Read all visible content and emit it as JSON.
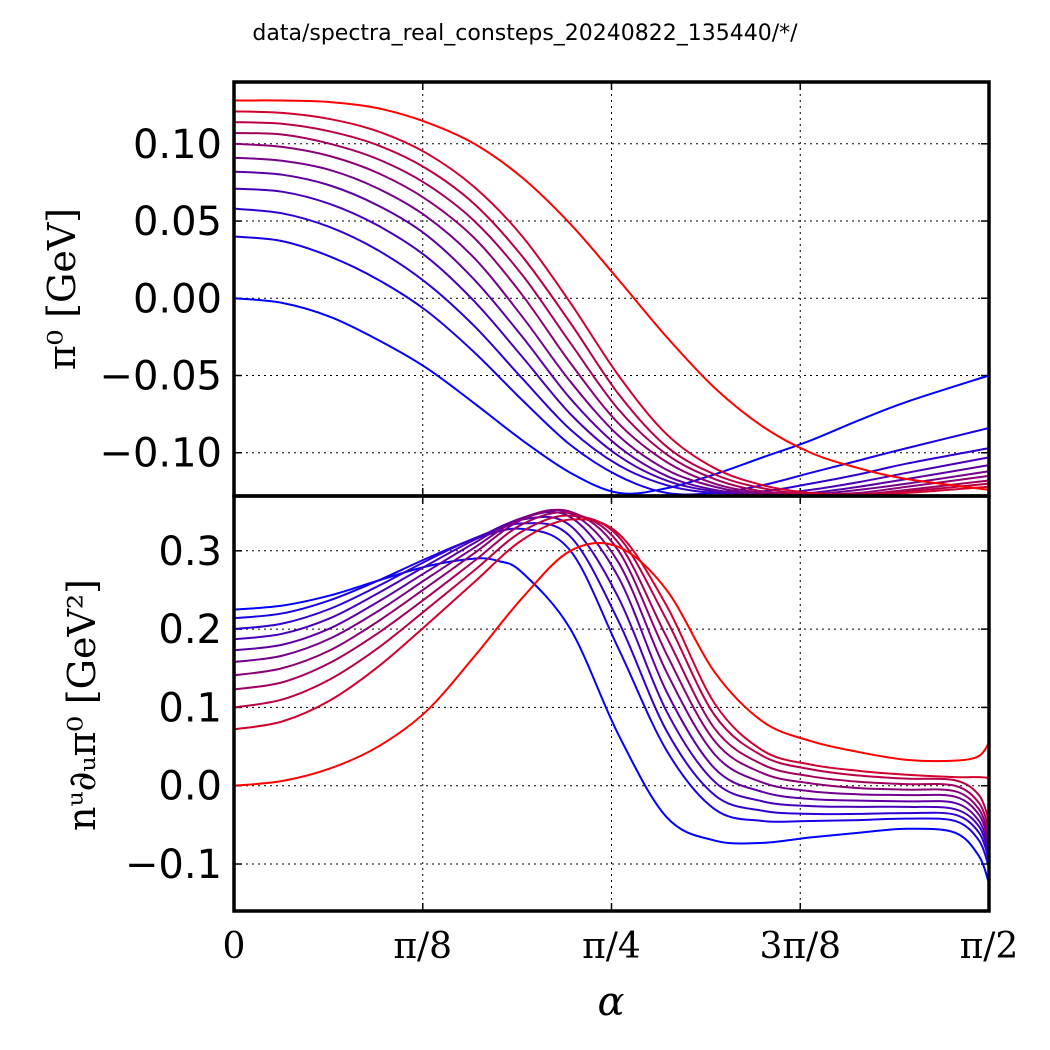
{
  "figure": {
    "title": "data/spectra_real_consteps_20240822_135440/*/"
  },
  "chart_data": [
    {
      "type": "line",
      "panel": "top",
      "ylabel": "π⁰ [GeV]",
      "xlabel": "",
      "xlim": [
        0,
        1.5708
      ],
      "ylim": [
        -0.128,
        0.14
      ],
      "yticks": [
        0.1,
        0.05,
        0.0,
        -0.05,
        -0.1
      ],
      "ytick_labels": [
        "0.10",
        "0.05",
        "0.00",
        "−0.05",
        "−0.10"
      ],
      "grid": true,
      "series_colors": [
        "#0000ff",
        "#1700e8",
        "#2e00d1",
        "#4600b9",
        "#5d00a2",
        "#74008b",
        "#8b0074",
        "#a2005d",
        "#b90046",
        "#d1002e",
        "#ff0000"
      ],
      "series": [
        {
          "x": [
            0,
            0.1,
            0.2,
            0.3,
            0.4,
            0.5,
            0.6,
            0.7,
            0.8,
            0.9,
            1.0,
            1.1,
            1.2,
            1.3,
            1.4,
            1.5708
          ],
          "values": [
            0.0,
            -0.003,
            -0.012,
            -0.027,
            -0.045,
            -0.068,
            -0.092,
            -0.113,
            -0.126,
            -0.123,
            -0.114,
            -0.103,
            -0.092,
            -0.079,
            -0.067,
            -0.05
          ]
        },
        {
          "x": [
            0,
            0.1,
            0.2,
            0.3,
            0.4,
            0.5,
            0.6,
            0.7,
            0.8,
            0.9,
            1.0,
            1.1,
            1.2,
            1.3,
            1.4,
            1.5708
          ],
          "values": [
            0.04,
            0.037,
            0.027,
            0.012,
            -0.008,
            -0.035,
            -0.066,
            -0.095,
            -0.115,
            -0.126,
            -0.126,
            -0.121,
            -0.113,
            -0.105,
            -0.097,
            -0.084
          ]
        },
        {
          "x": [
            0,
            0.1,
            0.2,
            0.3,
            0.4,
            0.5,
            0.6,
            0.7,
            0.8,
            0.9,
            1.0,
            1.1,
            1.2,
            1.3,
            1.4,
            1.5708
          ],
          "values": [
            0.058,
            0.055,
            0.046,
            0.031,
            0.01,
            -0.018,
            -0.052,
            -0.085,
            -0.108,
            -0.121,
            -0.126,
            -0.125,
            -0.12,
            -0.114,
            -0.107,
            -0.097
          ]
        },
        {
          "x": [
            0,
            0.1,
            0.2,
            0.3,
            0.4,
            0.5,
            0.6,
            0.7,
            0.8,
            0.9,
            1.0,
            1.1,
            1.2,
            1.3,
            1.4,
            1.5708
          ],
          "values": [
            0.071,
            0.069,
            0.061,
            0.047,
            0.027,
            -0.002,
            -0.038,
            -0.075,
            -0.102,
            -0.118,
            -0.125,
            -0.127,
            -0.124,
            -0.119,
            -0.113,
            -0.103
          ]
        },
        {
          "x": [
            0,
            0.1,
            0.2,
            0.3,
            0.4,
            0.5,
            0.6,
            0.7,
            0.8,
            0.9,
            1.0,
            1.1,
            1.2,
            1.3,
            1.4,
            1.5708
          ],
          "values": [
            0.082,
            0.08,
            0.073,
            0.06,
            0.041,
            0.012,
            -0.025,
            -0.065,
            -0.096,
            -0.115,
            -0.124,
            -0.127,
            -0.126,
            -0.122,
            -0.117,
            -0.108
          ]
        },
        {
          "x": [
            0,
            0.1,
            0.2,
            0.3,
            0.4,
            0.5,
            0.6,
            0.7,
            0.8,
            0.9,
            1.0,
            1.1,
            1.2,
            1.3,
            1.4,
            1.5708
          ],
          "values": [
            0.091,
            0.089,
            0.083,
            0.071,
            0.053,
            0.026,
            -0.012,
            -0.054,
            -0.089,
            -0.111,
            -0.122,
            -0.127,
            -0.127,
            -0.124,
            -0.12,
            -0.112
          ]
        },
        {
          "x": [
            0,
            0.1,
            0.2,
            0.3,
            0.4,
            0.5,
            0.6,
            0.7,
            0.8,
            0.9,
            1.0,
            1.1,
            1.2,
            1.3,
            1.4,
            1.5708
          ],
          "values": [
            0.1,
            0.098,
            0.092,
            0.081,
            0.064,
            0.039,
            0.002,
            -0.042,
            -0.081,
            -0.106,
            -0.12,
            -0.126,
            -0.127,
            -0.126,
            -0.122,
            -0.115
          ]
        },
        {
          "x": [
            0,
            0.1,
            0.2,
            0.3,
            0.4,
            0.5,
            0.6,
            0.7,
            0.8,
            0.9,
            1.0,
            1.1,
            1.2,
            1.3,
            1.4,
            1.5708
          ],
          "values": [
            0.107,
            0.106,
            0.1,
            0.09,
            0.074,
            0.05,
            0.015,
            -0.029,
            -0.072,
            -0.101,
            -0.117,
            -0.125,
            -0.127,
            -0.127,
            -0.124,
            -0.118
          ]
        },
        {
          "x": [
            0,
            0.1,
            0.2,
            0.3,
            0.4,
            0.5,
            0.6,
            0.7,
            0.8,
            0.9,
            1.0,
            1.1,
            1.2,
            1.3,
            1.4,
            1.5708
          ],
          "values": [
            0.114,
            0.113,
            0.108,
            0.099,
            0.084,
            0.061,
            0.027,
            -0.016,
            -0.062,
            -0.096,
            -0.114,
            -0.123,
            -0.127,
            -0.127,
            -0.125,
            -0.12
          ]
        },
        {
          "x": [
            0,
            0.1,
            0.2,
            0.3,
            0.4,
            0.5,
            0.6,
            0.7,
            0.8,
            0.9,
            1.0,
            1.1,
            1.2,
            1.3,
            1.4,
            1.5708
          ],
          "values": [
            0.121,
            0.12,
            0.116,
            0.108,
            0.094,
            0.072,
            0.04,
            -0.003,
            -0.05,
            -0.088,
            -0.11,
            -0.121,
            -0.126,
            -0.127,
            -0.126,
            -0.122
          ]
        },
        {
          "x": [
            0,
            0.1,
            0.2,
            0.3,
            0.4,
            0.5,
            0.6,
            0.7,
            0.8,
            0.9,
            1.0,
            1.1,
            1.2,
            1.3,
            1.4,
            1.5708
          ],
          "values": [
            0.128,
            0.128,
            0.127,
            0.123,
            0.114,
            0.1,
            0.078,
            0.048,
            0.012,
            -0.025,
            -0.058,
            -0.083,
            -0.1,
            -0.11,
            -0.117,
            -0.124
          ]
        }
      ]
    },
    {
      "type": "line",
      "panel": "bottom",
      "ylabel": "nᵘ∂ᵤπ⁰ [GeV²]",
      "xlabel": "α",
      "xlim": [
        0,
        1.5708
      ],
      "ylim": [
        -0.16,
        0.37
      ],
      "yticks": [
        0.3,
        0.2,
        0.1,
        0.0,
        -0.1
      ],
      "ytick_labels": [
        "0.3",
        "0.2",
        "0.1",
        "0.0",
        "−0.1"
      ],
      "xticks": [
        0,
        0.3927,
        0.7854,
        1.1781,
        1.5708
      ],
      "xtick_labels": [
        "0",
        "π/8",
        "π/4",
        "3π/8",
        "π/2"
      ],
      "grid": true,
      "series_colors": [
        "#0000ff",
        "#1700e8",
        "#2e00d1",
        "#4600b9",
        "#5d00a2",
        "#74008b",
        "#8b0074",
        "#a2005d",
        "#b90046",
        "#d1002e",
        "#ff0000"
      ],
      "series": [
        {
          "x": [
            0,
            0.1,
            0.2,
            0.3,
            0.4,
            0.5,
            0.55,
            0.6,
            0.7,
            0.8,
            0.9,
            1.0,
            1.1,
            1.2,
            1.3,
            1.4,
            1.5,
            1.55,
            1.5708
          ],
          "values": [
            0.225,
            0.23,
            0.243,
            0.262,
            0.28,
            0.29,
            0.287,
            0.272,
            0.2,
            0.065,
            -0.04,
            -0.07,
            -0.073,
            -0.066,
            -0.06,
            -0.055,
            -0.06,
            -0.09,
            -0.125
          ]
        },
        {
          "x": [
            0,
            0.1,
            0.2,
            0.3,
            0.4,
            0.5,
            0.6,
            0.7,
            0.8,
            0.9,
            1.0,
            1.1,
            1.2,
            1.3,
            1.4,
            1.5,
            1.55,
            1.5708
          ],
          "values": [
            0.214,
            0.22,
            0.237,
            0.262,
            0.29,
            0.315,
            0.328,
            0.3,
            0.175,
            0.045,
            -0.03,
            -0.045,
            -0.045,
            -0.044,
            -0.042,
            -0.045,
            -0.07,
            -0.105
          ]
        },
        {
          "x": [
            0,
            0.1,
            0.2,
            0.3,
            0.4,
            0.5,
            0.6,
            0.7,
            0.8,
            0.9,
            1.0,
            1.1,
            1.2,
            1.3,
            1.4,
            1.5,
            1.55,
            1.5708
          ],
          "values": [
            0.2,
            0.207,
            0.226,
            0.255,
            0.287,
            0.316,
            0.335,
            0.318,
            0.21,
            0.07,
            -0.012,
            -0.032,
            -0.036,
            -0.036,
            -0.035,
            -0.037,
            -0.06,
            -0.095
          ]
        },
        {
          "x": [
            0,
            0.1,
            0.2,
            0.3,
            0.4,
            0.5,
            0.6,
            0.7,
            0.8,
            0.9,
            1.0,
            1.1,
            1.2,
            1.3,
            1.4,
            1.5,
            1.55,
            1.5708
          ],
          "values": [
            0.187,
            0.194,
            0.214,
            0.246,
            0.281,
            0.314,
            0.34,
            0.332,
            0.24,
            0.095,
            0.005,
            -0.02,
            -0.026,
            -0.027,
            -0.027,
            -0.03,
            -0.052,
            -0.088
          ]
        },
        {
          "x": [
            0,
            0.1,
            0.2,
            0.3,
            0.4,
            0.5,
            0.6,
            0.7,
            0.8,
            0.9,
            1.0,
            1.1,
            1.2,
            1.3,
            1.4,
            1.5,
            1.55,
            1.5708
          ],
          "values": [
            0.173,
            0.18,
            0.201,
            0.235,
            0.273,
            0.31,
            0.342,
            0.343,
            0.266,
            0.12,
            0.022,
            -0.008,
            -0.017,
            -0.019,
            -0.02,
            -0.022,
            -0.045,
            -0.08
          ]
        },
        {
          "x": [
            0,
            0.1,
            0.2,
            0.3,
            0.4,
            0.5,
            0.6,
            0.7,
            0.8,
            0.9,
            1.0,
            1.1,
            1.2,
            1.3,
            1.4,
            1.5,
            1.55,
            1.5708
          ],
          "values": [
            0.158,
            0.166,
            0.188,
            0.223,
            0.264,
            0.304,
            0.342,
            0.348,
            0.285,
            0.145,
            0.04,
            0.004,
            -0.007,
            -0.011,
            -0.012,
            -0.014,
            -0.037,
            -0.072
          ]
        },
        {
          "x": [
            0,
            0.1,
            0.2,
            0.3,
            0.4,
            0.5,
            0.6,
            0.7,
            0.8,
            0.9,
            1.0,
            1.1,
            1.2,
            1.3,
            1.4,
            1.5,
            1.55,
            1.5708
          ],
          "values": [
            0.141,
            0.15,
            0.173,
            0.21,
            0.253,
            0.297,
            0.34,
            0.35,
            0.3,
            0.168,
            0.057,
            0.016,
            0.003,
            -0.003,
            -0.005,
            -0.007,
            -0.03,
            -0.064
          ]
        },
        {
          "x": [
            0,
            0.1,
            0.2,
            0.3,
            0.4,
            0.5,
            0.6,
            0.7,
            0.8,
            0.9,
            1.0,
            1.1,
            1.2,
            1.3,
            1.4,
            1.5,
            1.55,
            1.5708
          ],
          "values": [
            0.123,
            0.132,
            0.157,
            0.195,
            0.24,
            0.287,
            0.334,
            0.348,
            0.31,
            0.19,
            0.073,
            0.027,
            0.012,
            0.005,
            0.002,
            0.0,
            -0.022,
            -0.055
          ]
        },
        {
          "x": [
            0,
            0.1,
            0.2,
            0.3,
            0.4,
            0.5,
            0.6,
            0.7,
            0.8,
            0.9,
            1.0,
            1.1,
            1.2,
            1.3,
            1.4,
            1.5,
            1.55,
            1.5708
          ],
          "values": [
            0.1,
            0.11,
            0.136,
            0.176,
            0.225,
            0.275,
            0.325,
            0.345,
            0.318,
            0.212,
            0.09,
            0.038,
            0.021,
            0.013,
            0.009,
            0.007,
            -0.012,
            -0.045
          ]
        },
        {
          "x": [
            0,
            0.1,
            0.2,
            0.3,
            0.4,
            0.5,
            0.6,
            0.7,
            0.8,
            0.9,
            1.0,
            1.1,
            1.2,
            1.3,
            1.4,
            1.5,
            1.55,
            1.5708
          ],
          "values": [
            0.072,
            0.082,
            0.109,
            0.152,
            0.205,
            0.26,
            0.314,
            0.34,
            0.322,
            0.23,
            0.105,
            0.045,
            0.027,
            0.019,
            0.014,
            0.011,
            0.011,
            0.01
          ]
        },
        {
          "x": [
            0,
            0.1,
            0.2,
            0.3,
            0.4,
            0.5,
            0.6,
            0.7,
            0.8,
            0.9,
            1.0,
            1.1,
            1.2,
            1.3,
            1.4,
            1.5,
            1.55,
            1.5708
          ],
          "values": [
            0.0,
            0.006,
            0.022,
            0.05,
            0.095,
            0.165,
            0.24,
            0.3,
            0.305,
            0.25,
            0.145,
            0.082,
            0.057,
            0.043,
            0.033,
            0.032,
            0.038,
            0.055
          ]
        }
      ]
    }
  ]
}
